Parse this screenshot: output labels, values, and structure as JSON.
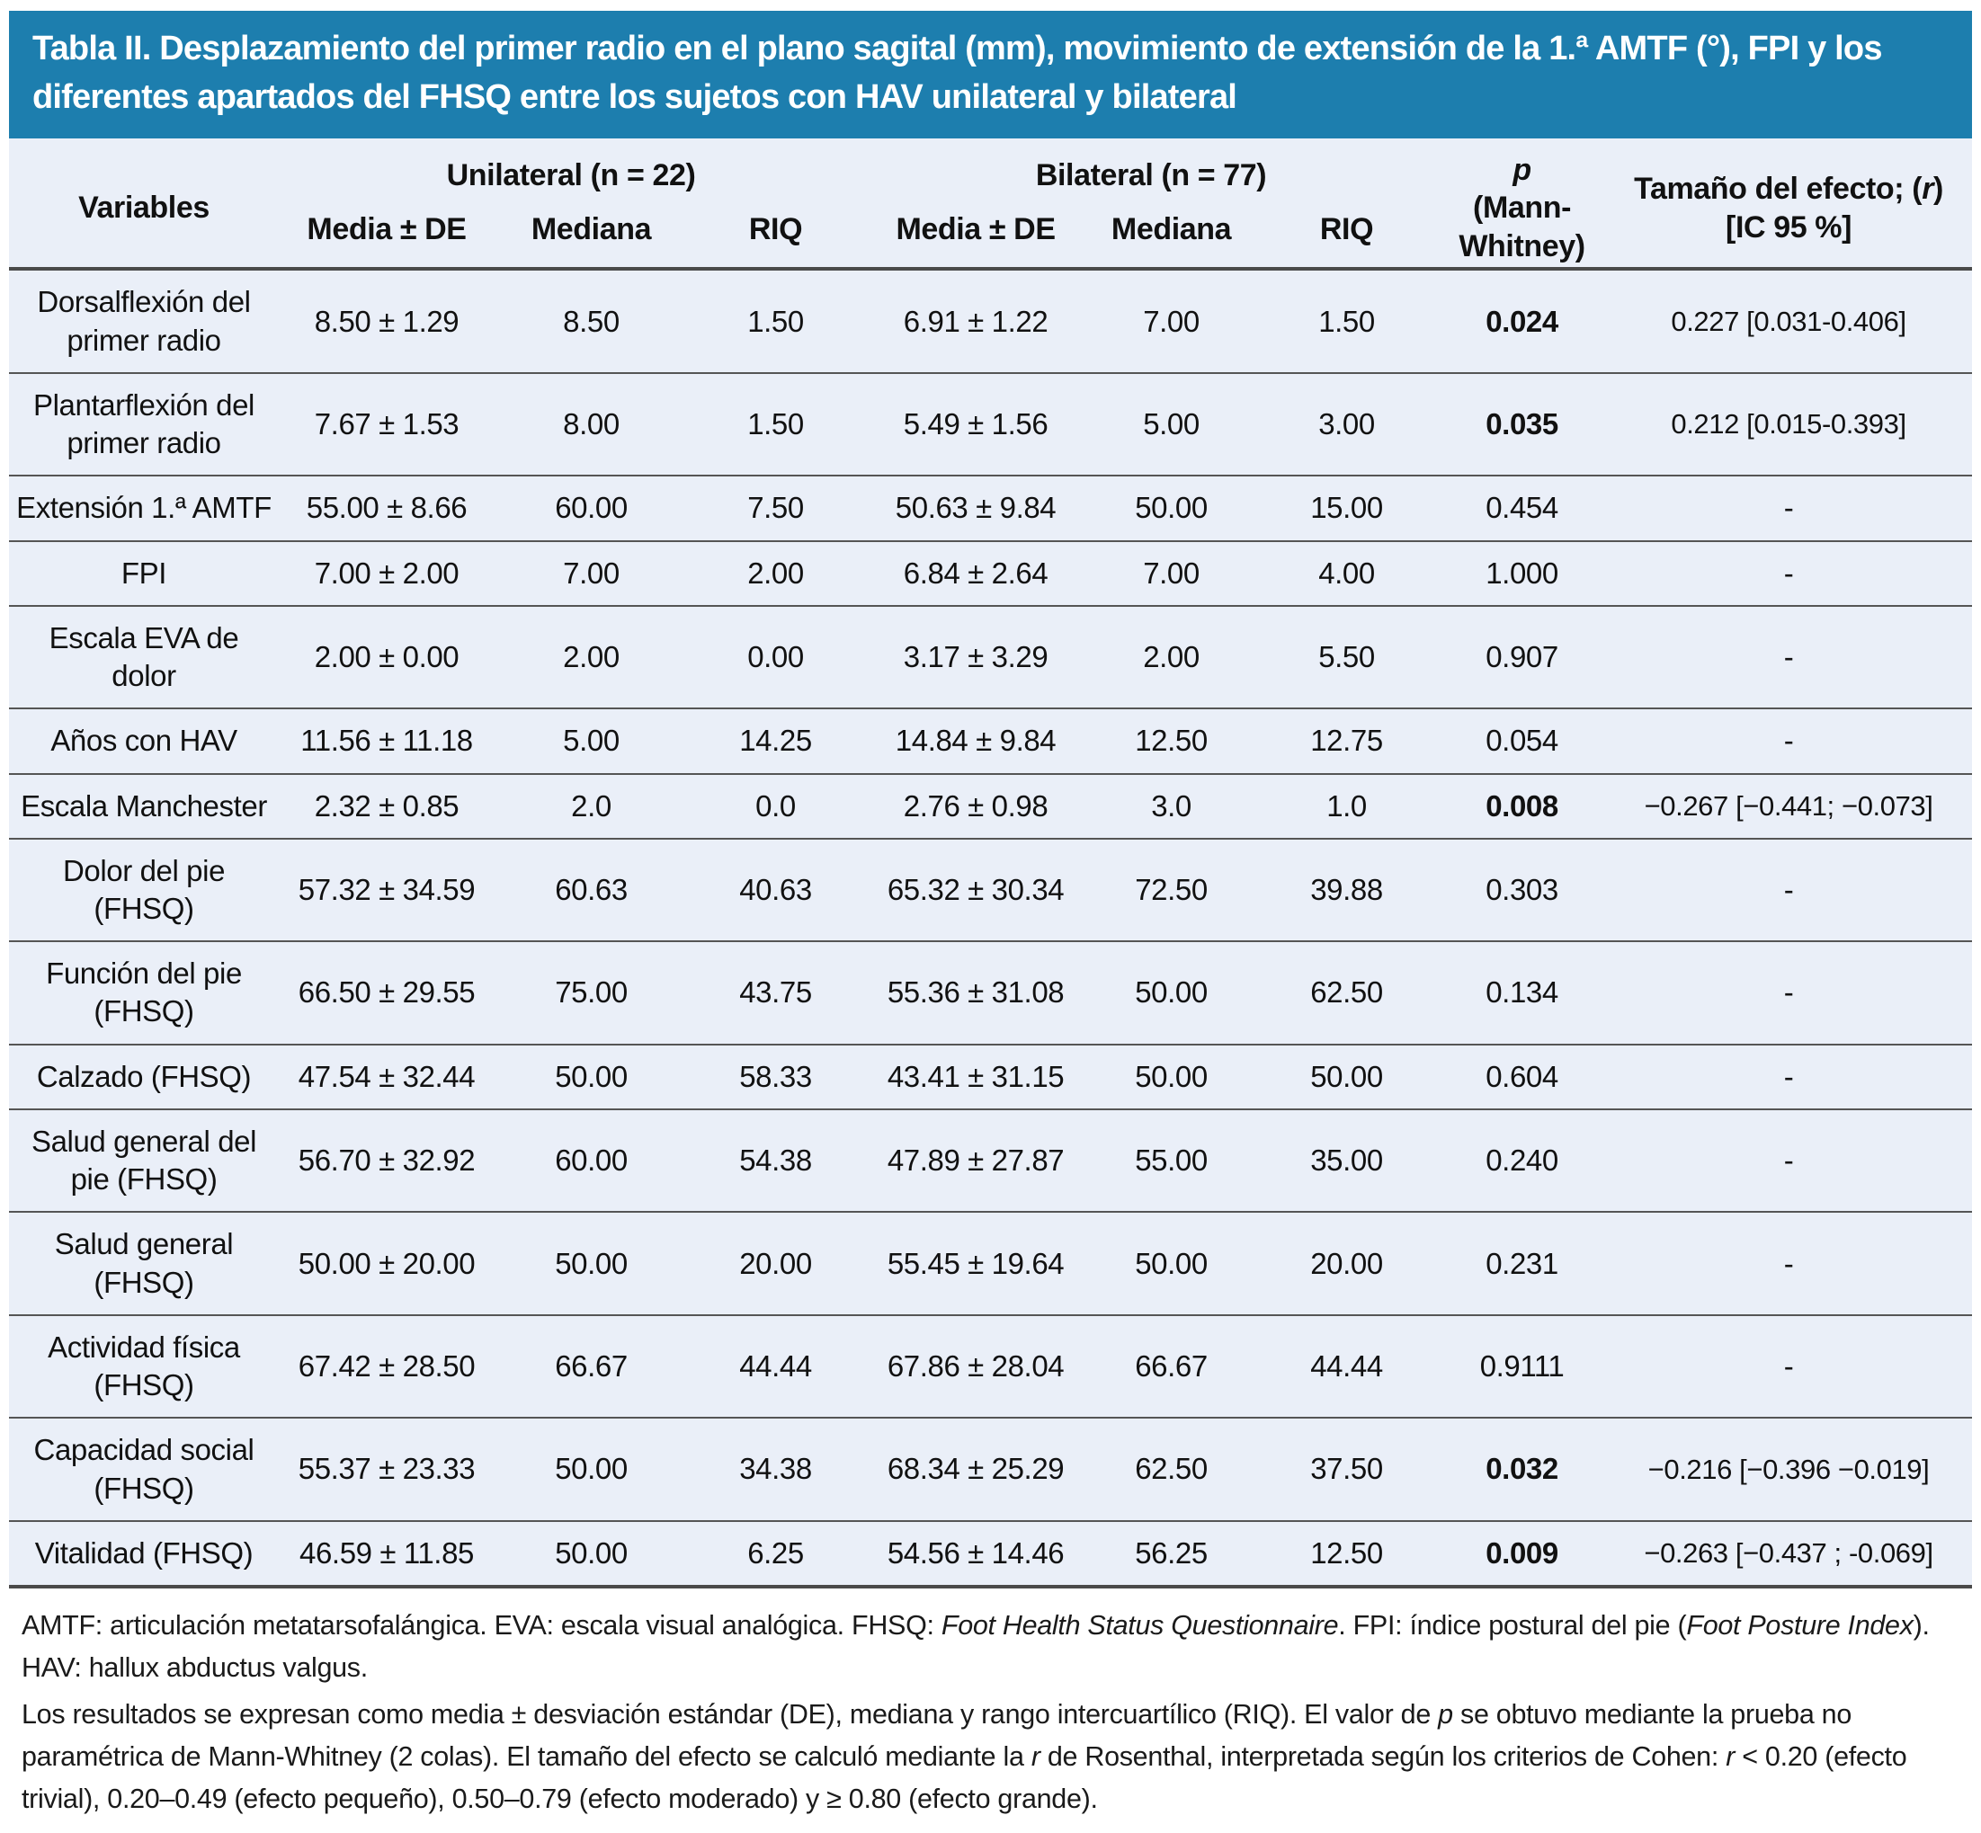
{
  "title": "Tabla II. Desplazamiento del primer radio en el plano sagital (mm), movimiento de extensión de la 1.ª AMTF (°), FPI y los diferentes apartados del FHSQ entre los sujetos con HAV unilateral y bilateral",
  "colors": {
    "header_bg": "#1d7eae",
    "body_bg": "#eaeff8",
    "row_line": "#555555",
    "title_text": "#ffffff"
  },
  "table": {
    "variables_header": "Variables",
    "group_unilateral": "Unilateral (n = 22)",
    "group_bilateral": "Bilateral (n = 77)",
    "subheaders": [
      "Media ± DE",
      "Mediana",
      "RIQ"
    ],
    "p_header_symbol": "p",
    "p_header_test": "(Mann-Whitney)",
    "effect_header": {
      "prefix": "Tamaño del efecto; (",
      "r": "r",
      "suffix": ")",
      "ci": "[IC 95 %]"
    },
    "rows": [
      {
        "variable": "Dorsalflexión del primer radio",
        "uni_media": "8.50 ± 1.29",
        "uni_mediana": "8.50",
        "uni_riq": "1.50",
        "bil_media": "6.91 ± 1.22",
        "bil_mediana": "7.00",
        "bil_riq": "1.50",
        "p": "0.024",
        "p_bold": true,
        "effect": "0.227 [0.031-0.406]"
      },
      {
        "variable": "Plantarflexión del primer radio",
        "uni_media": "7.67 ± 1.53",
        "uni_mediana": "8.00",
        "uni_riq": "1.50",
        "bil_media": "5.49 ± 1.56",
        "bil_mediana": "5.00",
        "bil_riq": "3.00",
        "p": "0.035",
        "p_bold": true,
        "effect": "0.212 [0.015-0.393]"
      },
      {
        "variable": "Extensión 1.ª AMTF",
        "uni_media": "55.00 ± 8.66",
        "uni_mediana": "60.00",
        "uni_riq": "7.50",
        "bil_media": "50.63 ± 9.84",
        "bil_mediana": "50.00",
        "bil_riq": "15.00",
        "p": "0.454",
        "p_bold": false,
        "effect": "-"
      },
      {
        "variable": "FPI",
        "uni_media": "7.00 ± 2.00",
        "uni_mediana": "7.00",
        "uni_riq": "2.00",
        "bil_media": "6.84 ± 2.64",
        "bil_mediana": "7.00",
        "bil_riq": "4.00",
        "p": "1.000",
        "p_bold": false,
        "effect": "-"
      },
      {
        "variable": "Escala EVA de dolor",
        "uni_media": "2.00 ± 0.00",
        "uni_mediana": "2.00",
        "uni_riq": "0.00",
        "bil_media": "3.17 ± 3.29",
        "bil_mediana": "2.00",
        "bil_riq": "5.50",
        "p": "0.907",
        "p_bold": false,
        "effect": "-"
      },
      {
        "variable": "Años con HAV",
        "uni_media": "11.56 ± 11.18",
        "uni_mediana": "5.00",
        "uni_riq": "14.25",
        "bil_media": "14.84 ± 9.84",
        "bil_mediana": "12.50",
        "bil_riq": "12.75",
        "p": "0.054",
        "p_bold": false,
        "effect": "-"
      },
      {
        "variable": "Escala Manchester",
        "uni_media": "2.32 ± 0.85",
        "uni_mediana": "2.0",
        "uni_riq": "0.0",
        "bil_media": "2.76 ± 0.98",
        "bil_mediana": "3.0",
        "bil_riq": "1.0",
        "p": "0.008",
        "p_bold": true,
        "effect": "−0.267 [−0.441; −0.073]"
      },
      {
        "variable": "Dolor del pie (FHSQ)",
        "uni_media": "57.32 ± 34.59",
        "uni_mediana": "60.63",
        "uni_riq": "40.63",
        "bil_media": "65.32 ± 30.34",
        "bil_mediana": "72.50",
        "bil_riq": "39.88",
        "p": "0.303",
        "p_bold": false,
        "effect": "-"
      },
      {
        "variable": "Función del pie (FHSQ)",
        "uni_media": "66.50 ± 29.55",
        "uni_mediana": "75.00",
        "uni_riq": "43.75",
        "bil_media": "55.36 ± 31.08",
        "bil_mediana": "50.00",
        "bil_riq": "62.50",
        "p": "0.134",
        "p_bold": false,
        "effect": "-"
      },
      {
        "variable": "Calzado (FHSQ)",
        "uni_media": "47.54 ± 32.44",
        "uni_mediana": "50.00",
        "uni_riq": "58.33",
        "bil_media": "43.41 ± 31.15",
        "bil_mediana": "50.00",
        "bil_riq": "50.00",
        "p": "0.604",
        "p_bold": false,
        "effect": "-"
      },
      {
        "variable": "Salud general del pie (FHSQ)",
        "uni_media": "56.70 ± 32.92",
        "uni_mediana": "60.00",
        "uni_riq": "54.38",
        "bil_media": "47.89 ± 27.87",
        "bil_mediana": "55.00",
        "bil_riq": "35.00",
        "p": "0.240",
        "p_bold": false,
        "effect": "-"
      },
      {
        "variable": "Salud general (FHSQ)",
        "uni_media": "50.00 ± 20.00",
        "uni_mediana": "50.00",
        "uni_riq": "20.00",
        "bil_media": "55.45 ± 19.64",
        "bil_mediana": "50.00",
        "bil_riq": "20.00",
        "p": "0.231",
        "p_bold": false,
        "effect": "-"
      },
      {
        "variable": "Actividad física (FHSQ)",
        "uni_media": "67.42 ± 28.50",
        "uni_mediana": "66.67",
        "uni_riq": "44.44",
        "bil_media": "67.86 ± 28.04",
        "bil_mediana": "66.67",
        "bil_riq": "44.44",
        "p": "0.9111",
        "p_bold": false,
        "effect": "-"
      },
      {
        "variable": "Capacidad social (FHSQ)",
        "uni_media": "55.37 ± 23.33",
        "uni_mediana": "50.00",
        "uni_riq": "34.38",
        "bil_media": "68.34 ± 25.29",
        "bil_mediana": "62.50",
        "bil_riq": "37.50",
        "p": "0.032",
        "p_bold": true,
        "effect": "−0.216 [−0.396 −0.019]"
      },
      {
        "variable": "Vitalidad (FHSQ)",
        "uni_media": "46.59 ± 11.85",
        "uni_mediana": "50.00",
        "uni_riq": "6.25",
        "bil_media": "54.56 ± 14.46",
        "bil_mediana": "56.25",
        "bil_riq": "12.50",
        "p": "0.009",
        "p_bold": true,
        "effect": "−0.263 [−0.437 ; -0.069]"
      }
    ]
  },
  "footnotes": {
    "fn1": {
      "part1": "AMTF: articulación metatarsofalángica. EVA: escala visual analógica. FHSQ: ",
      "part2_italic": "Foot Health Status Questionnaire",
      "part3": ". FPI: índice postural del pie (",
      "part4_italic": "Foot Posture Index",
      "part5": "). HAV: hallux abductus valgus."
    },
    "fn2": {
      "part1": "Los resultados se expresan como media ± desviación estándar (DE), mediana y rango intercuartílico (RIQ). El valor de ",
      "part2_italic": "p",
      "part3": " se obtuvo mediante la prueba no paramétrica de Mann-Whitney (2 colas). El tamaño del efecto se calculó mediante la ",
      "part4_italic": "r",
      "part5": " de Rosenthal, interpretada según los criterios de Cohen: ",
      "part6_italic": "r",
      "part7": " < 0.20 (efecto trivial), 0.20–0.49 (efecto pequeño), 0.50–0.79 (efecto moderado) y ≥ 0.80 (efecto grande)."
    }
  }
}
